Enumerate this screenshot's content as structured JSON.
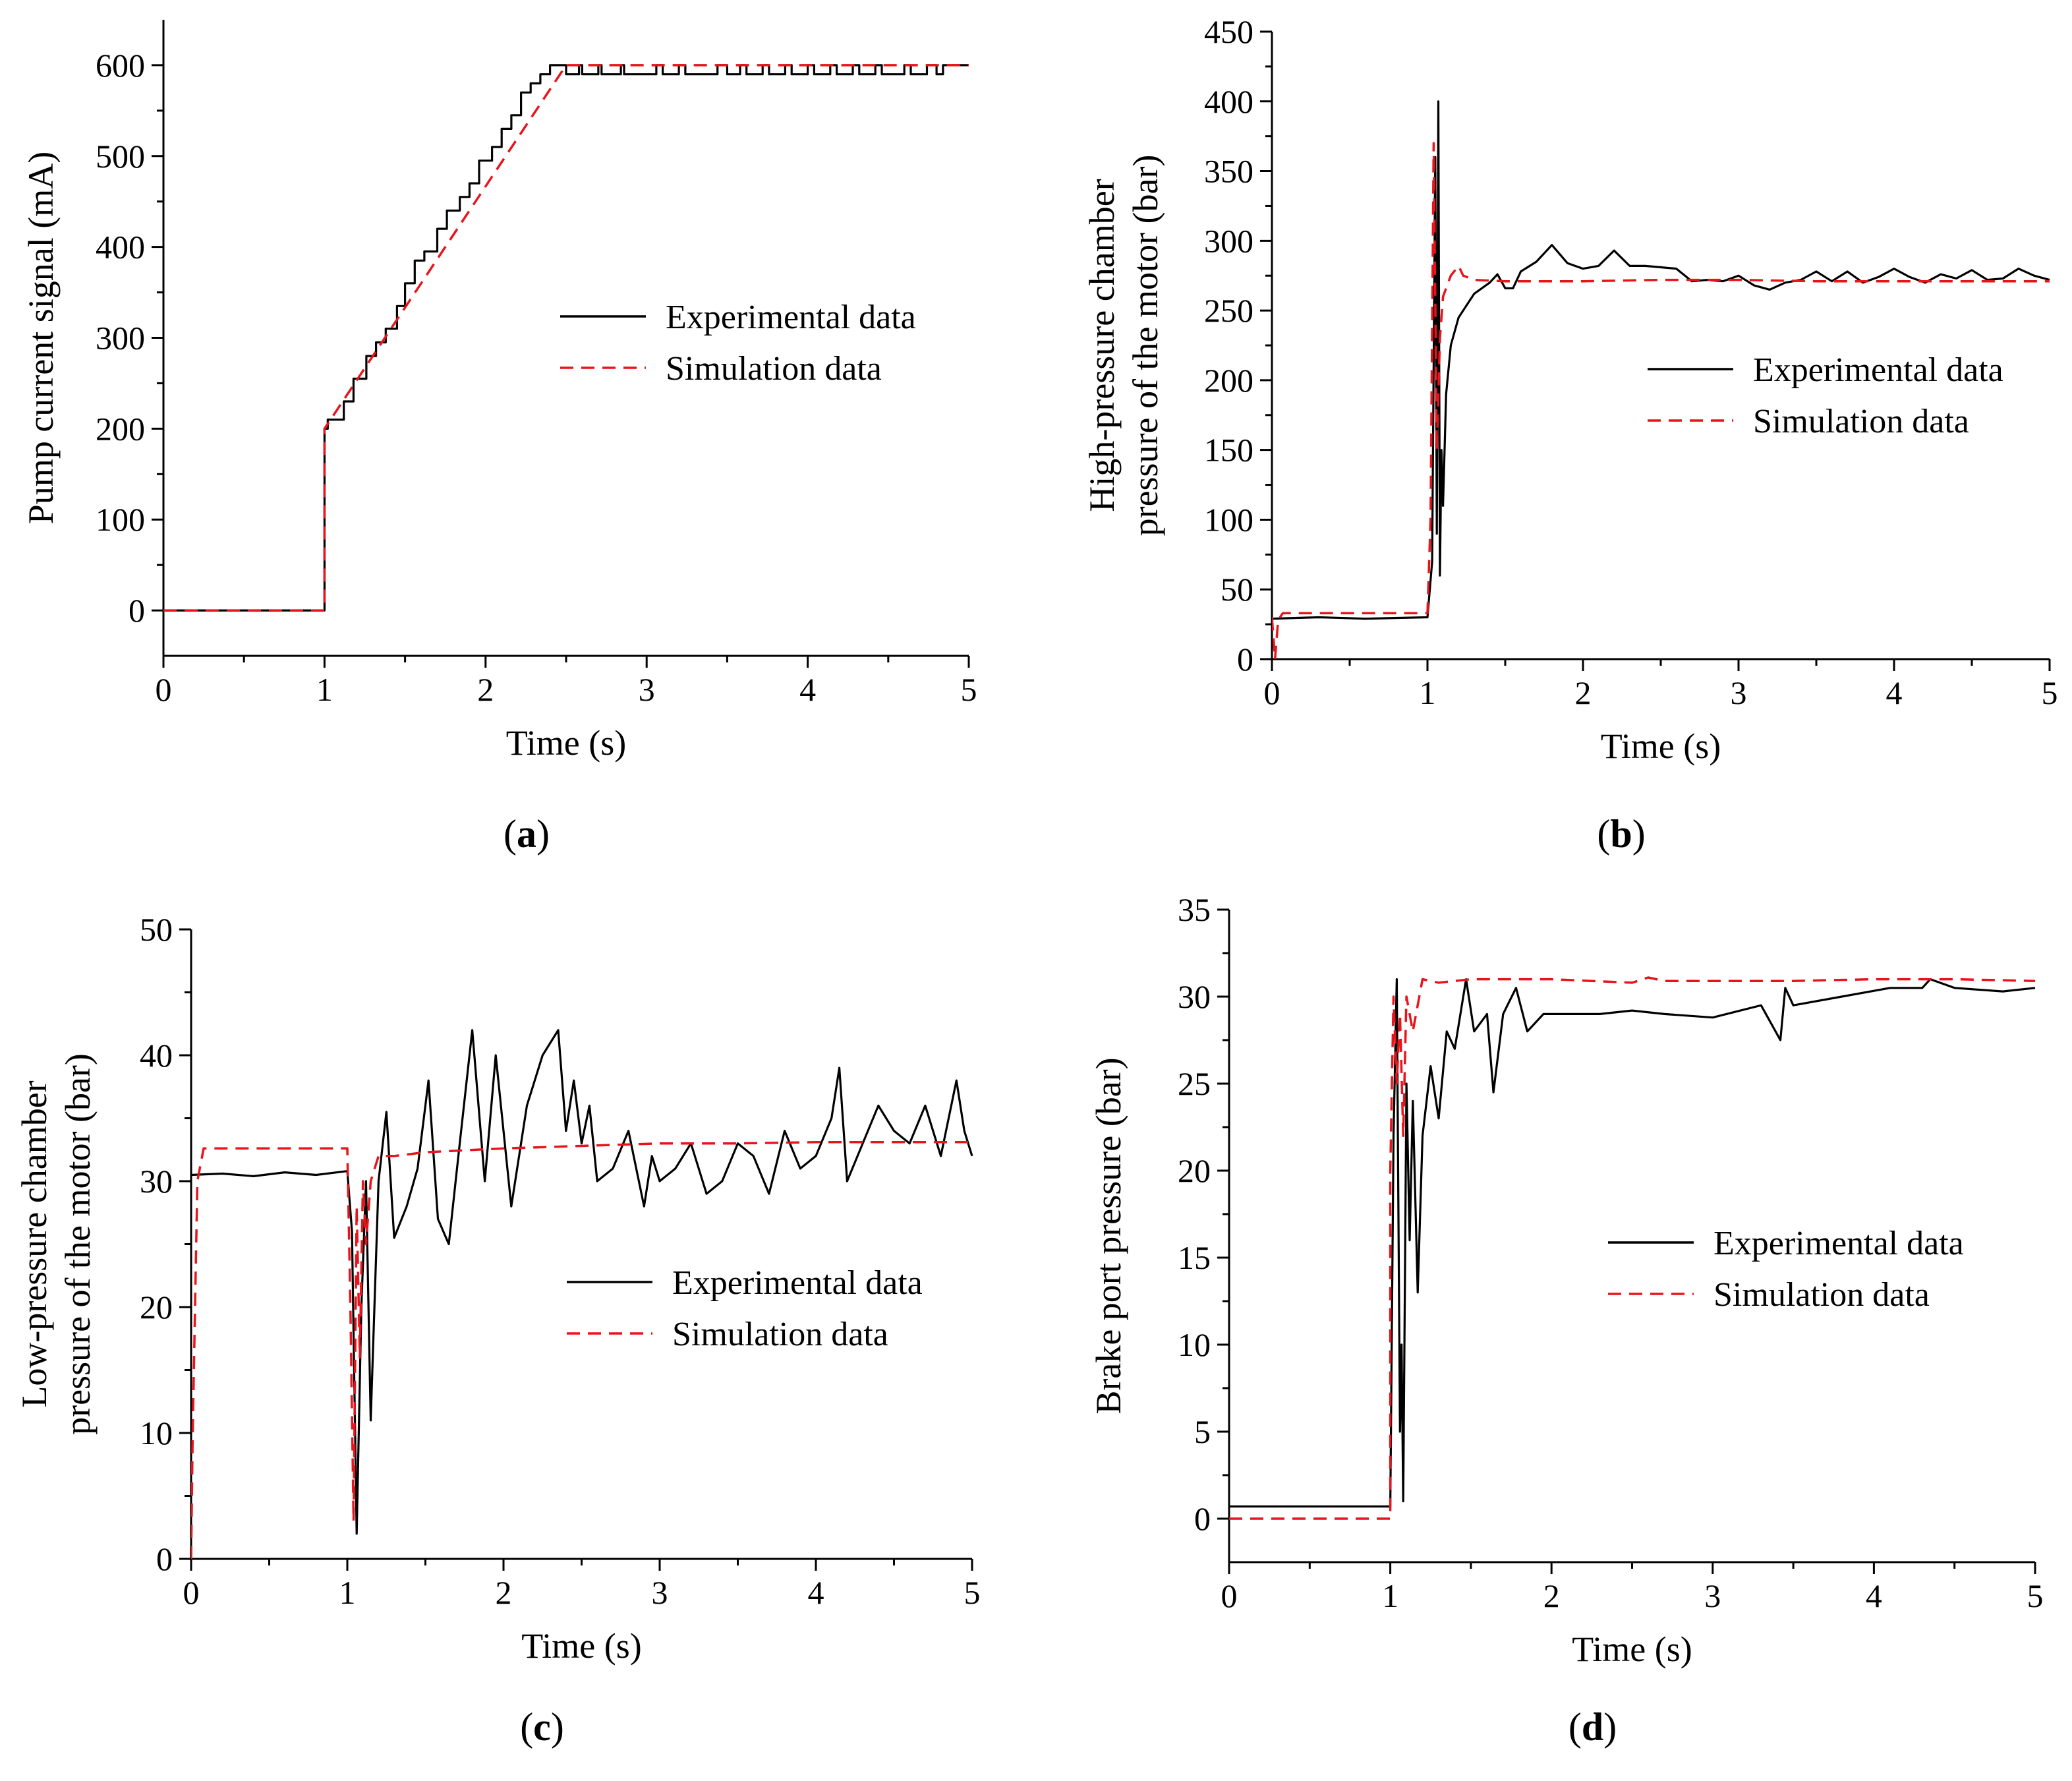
{
  "figure": {
    "colors": {
      "experimental": "#000000",
      "simulation": "#e8141c",
      "axis": "#000000",
      "background": "#ffffff"
    }
  },
  "chart_data": [
    {
      "id": "a",
      "type": "line",
      "panel_label": "a",
      "xlabel": "Time (s)",
      "ylabel_lines": [
        "Pump current signal (mA)"
      ],
      "xlim": [
        0,
        5
      ],
      "ylim": [
        -50,
        650
      ],
      "xticks": [
        "0",
        "1",
        "2",
        "3",
        "4",
        "5"
      ],
      "yticks": [
        "0",
        "100",
        "200",
        "300",
        "400",
        "500",
        "600"
      ],
      "legend": [
        "Experimental data",
        "Simulation data"
      ],
      "legend_position": "center-right",
      "series": [
        {
          "name": "Experimental data",
          "style": "solid",
          "x": [
            0,
            1.0,
            1.0,
            1.02,
            1.02,
            1.12,
            1.12,
            1.18,
            1.18,
            1.26,
            1.26,
            1.32,
            1.32,
            1.38,
            1.38,
            1.45,
            1.45,
            1.5,
            1.5,
            1.56,
            1.56,
            1.62,
            1.62,
            1.7,
            1.7,
            1.76,
            1.76,
            1.84,
            1.84,
            1.9,
            1.9,
            1.96,
            1.96,
            2.04,
            2.04,
            2.1,
            2.1,
            2.16,
            2.16,
            2.22,
            2.22,
            2.28,
            2.28,
            2.34,
            2.34,
            2.4,
            2.4,
            2.5,
            2.5,
            2.58,
            2.58,
            2.6,
            2.6,
            2.7,
            2.7,
            2.72,
            2.72,
            2.84,
            2.84,
            2.86,
            2.86,
            3.06,
            3.06,
            3.1,
            3.1,
            3.2,
            3.2,
            3.24,
            3.24,
            3.44,
            3.44,
            3.5,
            3.5,
            3.58,
            3.58,
            3.62,
            3.62,
            3.72,
            3.72,
            3.76,
            3.76,
            3.86,
            3.86,
            3.9,
            3.9,
            4.0,
            4.0,
            4.04,
            4.04,
            4.14,
            4.14,
            4.18,
            4.18,
            4.28,
            4.28,
            4.32,
            4.32,
            4.42,
            4.42,
            4.46,
            4.46,
            4.6,
            4.6,
            4.64,
            4.64,
            4.74,
            4.74,
            4.8,
            4.8,
            4.84,
            4.84,
            5.0
          ],
          "y": [
            0,
            0,
            200,
            200,
            210,
            210,
            230,
            230,
            255,
            255,
            280,
            280,
            295,
            295,
            310,
            310,
            335,
            335,
            360,
            360,
            385,
            385,
            395,
            395,
            420,
            420,
            440,
            440,
            455,
            455,
            470,
            470,
            495,
            495,
            510,
            510,
            530,
            530,
            545,
            545,
            570,
            570,
            580,
            580,
            590,
            590,
            600,
            600,
            590,
            590,
            600,
            600,
            590,
            590,
            600,
            600,
            590,
            590,
            600,
            600,
            590,
            590,
            600,
            600,
            590,
            590,
            600,
            600,
            590,
            590,
            600,
            600,
            590,
            590,
            600,
            600,
            590,
            590,
            600,
            600,
            590,
            590,
            600,
            600,
            590,
            590,
            600,
            600,
            590,
            590,
            600,
            600,
            590,
            590,
            600,
            600,
            590,
            590,
            600,
            600,
            590,
            590,
            600,
            600,
            590,
            590,
            600,
            600,
            590,
            590,
            600,
            600
          ]
        },
        {
          "name": "Simulation data",
          "style": "dashed",
          "x": [
            0,
            1.0,
            1.0,
            2.5,
            5.0
          ],
          "y": [
            0,
            0,
            200,
            600,
            600
          ]
        }
      ]
    },
    {
      "id": "b",
      "type": "line",
      "panel_label": "b",
      "xlabel": "Time (s)",
      "ylabel_lines": [
        "High-pressure chamber",
        "pressure of the motor (bar)"
      ],
      "xlim": [
        0,
        5
      ],
      "ylim": [
        0,
        450
      ],
      "xticks": [
        "0",
        "1",
        "2",
        "3",
        "4",
        "5"
      ],
      "yticks": [
        "0",
        "50",
        "100",
        "150",
        "200",
        "250",
        "300",
        "350",
        "400",
        "450"
      ],
      "legend": [
        "Experimental data",
        "Simulation data"
      ],
      "legend_position": "center-right",
      "series": [
        {
          "name": "Experimental data",
          "style": "solid",
          "x": [
            0,
            0.3,
            0.6,
            1.0,
            1.03,
            1.05,
            1.06,
            1.07,
            1.08,
            1.09,
            1.1,
            1.12,
            1.15,
            1.2,
            1.3,
            1.4,
            1.45,
            1.5,
            1.55,
            1.6,
            1.7,
            1.8,
            1.9,
            2.0,
            2.1,
            2.2,
            2.3,
            2.4,
            2.5,
            2.6,
            2.7,
            2.8,
            2.9,
            3.0,
            3.1,
            3.2,
            3.3,
            3.4,
            3.5,
            3.6,
            3.7,
            3.8,
            3.9,
            4.0,
            4.1,
            4.2,
            4.3,
            4.4,
            4.5,
            4.6,
            4.7,
            4.8,
            4.9,
            5.0
          ],
          "y": [
            29,
            30,
            29,
            30,
            70,
            360,
            90,
            400,
            60,
            150,
            110,
            190,
            225,
            245,
            262,
            270,
            276,
            266,
            266,
            278,
            285,
            297,
            284,
            280,
            282,
            293,
            282,
            282,
            281,
            280,
            271,
            272,
            271,
            275,
            268,
            265,
            270,
            272,
            278,
            271,
            278,
            270,
            274,
            280,
            274,
            270,
            276,
            273,
            279,
            272,
            273,
            280,
            275,
            272
          ]
        },
        {
          "name": "Simulation data",
          "style": "dashed",
          "x": [
            0,
            0.02,
            0.04,
            0.07,
            0.1,
            0.5,
            1.0,
            1.02,
            1.04,
            1.06,
            1.08,
            1.1,
            1.15,
            1.2,
            1.23,
            1.3,
            1.5,
            2.0,
            2.5,
            3.0,
            3.5,
            4.0,
            4.5,
            5.0
          ],
          "y": [
            30,
            0,
            28,
            33,
            33,
            33,
            33,
            100,
            370,
            150,
            230,
            260,
            275,
            282,
            275,
            272,
            271,
            271,
            272,
            272,
            271,
            271,
            271,
            271
          ]
        }
      ]
    },
    {
      "id": "c",
      "type": "line",
      "panel_label": "c",
      "xlabel": "Time (s)",
      "ylabel_lines": [
        "Low-pressure chamber",
        "pressure of the motor (bar)"
      ],
      "xlim": [
        0,
        5
      ],
      "ylim": [
        0,
        50
      ],
      "xticks": [
        "0",
        "1",
        "2",
        "3",
        "4",
        "5"
      ],
      "yticks": [
        "0",
        "10",
        "20",
        "30",
        "40",
        "50"
      ],
      "legend": [
        "Experimental data",
        "Simulation data"
      ],
      "legend_position": "center-right",
      "series": [
        {
          "name": "Experimental data",
          "style": "solid",
          "x": [
            0,
            0.2,
            0.4,
            0.6,
            0.8,
            1.0,
            1.03,
            1.06,
            1.09,
            1.12,
            1.15,
            1.2,
            1.25,
            1.3,
            1.38,
            1.45,
            1.52,
            1.58,
            1.65,
            1.72,
            1.8,
            1.88,
            1.95,
            2.05,
            2.15,
            2.25,
            2.35,
            2.4,
            2.45,
            2.5,
            2.55,
            2.6,
            2.7,
            2.8,
            2.9,
            2.95,
            3.0,
            3.1,
            3.2,
            3.3,
            3.4,
            3.5,
            3.6,
            3.7,
            3.8,
            3.9,
            4.0,
            4.1,
            4.15,
            4.2,
            4.3,
            4.4,
            4.5,
            4.6,
            4.7,
            4.8,
            4.9,
            4.95,
            5.0
          ],
          "y": [
            30.5,
            30.6,
            30.4,
            30.7,
            30.5,
            30.8,
            26,
            2,
            20,
            30,
            11,
            30,
            35.5,
            25.5,
            28,
            31,
            38,
            27,
            25,
            33,
            42,
            30,
            40,
            28,
            36,
            40,
            42,
            34,
            38,
            33,
            36,
            30,
            31,
            34,
            28,
            32,
            30,
            31,
            33,
            29,
            30,
            33,
            32,
            29,
            34,
            31,
            32,
            35,
            39,
            30,
            33,
            36,
            34,
            33,
            36,
            32,
            38,
            34,
            32
          ]
        },
        {
          "name": "Simulation data",
          "style": "dashed",
          "x": [
            0,
            0.01,
            0.04,
            0.08,
            0.5,
            1.0,
            1.02,
            1.04,
            1.06,
            1.08,
            1.1,
            1.12,
            1.15,
            1.2,
            1.3,
            1.5,
            2.0,
            2.5,
            3.0,
            3.5,
            4.0,
            4.5,
            5.0
          ],
          "y": [
            0,
            10,
            30,
            32.6,
            32.6,
            32.6,
            20,
            3,
            28,
            16,
            30,
            25,
            30,
            32,
            32,
            32.3,
            32.6,
            32.8,
            33,
            33,
            33.1,
            33.1,
            33.1
          ]
        }
      ]
    },
    {
      "id": "d",
      "type": "line",
      "panel_label": "d",
      "xlabel": "Time (s)",
      "ylabel_lines": [
        "Brake port pressure (bar)"
      ],
      "xlim": [
        0,
        5
      ],
      "ylim": [
        -2.5,
        35
      ],
      "xticks": [
        "0",
        "1",
        "2",
        "3",
        "4",
        "5"
      ],
      "yticks": [
        "0",
        "5",
        "10",
        "15",
        "20",
        "25",
        "30",
        "35"
      ],
      "legend": [
        "Experimental data",
        "Simulation data"
      ],
      "legend_position": "center-right",
      "series": [
        {
          "name": "Experimental data",
          "style": "solid",
          "x": [
            0,
            0.5,
            1.0,
            1.02,
            1.04,
            1.06,
            1.07,
            1.08,
            1.1,
            1.12,
            1.14,
            1.17,
            1.2,
            1.25,
            1.3,
            1.35,
            1.4,
            1.47,
            1.52,
            1.6,
            1.64,
            1.7,
            1.78,
            1.85,
            1.95,
            2.1,
            2.3,
            2.5,
            2.7,
            3.0,
            3.3,
            3.42,
            3.45,
            3.5,
            3.8,
            4.1,
            4.3,
            4.35,
            4.5,
            4.8,
            5.0
          ],
          "y": [
            0.7,
            0.7,
            0.7,
            22,
            31,
            5,
            10,
            1,
            25,
            16,
            24,
            13,
            22,
            26,
            23,
            28,
            27,
            31,
            28,
            29,
            24.5,
            29,
            30.5,
            28,
            29,
            29,
            29,
            29.2,
            29,
            28.8,
            29.5,
            27.5,
            30.5,
            29.5,
            30,
            30.5,
            30.5,
            31,
            30.5,
            30.3,
            30.5
          ]
        },
        {
          "name": "Simulation data",
          "style": "dashed",
          "x": [
            0,
            1.0,
            1.0,
            1.02,
            1.04,
            1.06,
            1.08,
            1.1,
            1.14,
            1.2,
            1.3,
            1.5,
            2.0,
            2.5,
            2.6,
            2.7,
            3.0,
            3.5,
            4.0,
            4.5,
            5.0
          ],
          "y": [
            0,
            0,
            20,
            30,
            25,
            29,
            22,
            30,
            28,
            31,
            30.8,
            31,
            31,
            30.8,
            31.1,
            30.9,
            30.9,
            30.9,
            31,
            31,
            30.9
          ]
        }
      ]
    }
  ]
}
